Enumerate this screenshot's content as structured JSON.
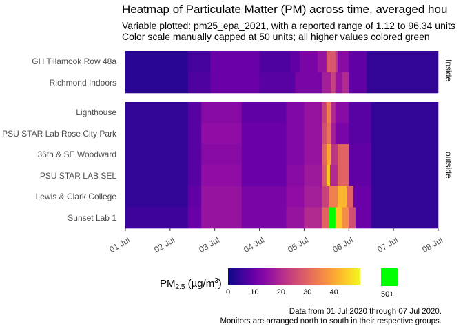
{
  "chart_data": {
    "type": "heatmap",
    "title": "Heatmap of Particulate Matter (PM) across time, averaged hou",
    "subtitle_lines": [
      "Variable plotted: pm25_epa_2021, with a reported range of 1.12 to 96.34 units",
      "Color scale manually capped at 50 units; all higher values colored green"
    ],
    "x_ticks": [
      "01 Jul",
      "02 Jul",
      "03 Jul",
      "04 Jul",
      "05 Jul",
      "06 Jul",
      "07 Jul",
      "08 Jul"
    ],
    "x_range": [
      "2020-07-01",
      "2020-07-08"
    ],
    "color_scale": {
      "min": 0,
      "cap": 50,
      "ticks": [
        "0",
        "10",
        "20",
        "30",
        "40"
      ],
      "over_cap_label": "50+",
      "over_cap_color": "#00ff00"
    },
    "legend_title": "PM2.5 (µg/m3)",
    "legend_title_parts": {
      "main": "PM",
      "sub": "2.5",
      "unit_open": " (µg/m",
      "sup": "3",
      "unit_close": ")"
    },
    "panels": [
      {
        "name": "inside",
        "monitors": [
          {
            "name": "GH Tillamook Row 48a",
            "base": 3,
            "segments": [
              [
                0,
                1.4,
                3
              ],
              [
                1.4,
                1.9,
                6
              ],
              [
                1.9,
                3.0,
                10
              ],
              [
                3.0,
                3.7,
                7
              ],
              [
                3.7,
                3.9,
                9
              ],
              [
                3.9,
                4.3,
                12
              ],
              [
                4.3,
                4.5,
                16
              ],
              [
                4.5,
                4.7,
                28
              ],
              [
                4.7,
                4.75,
                22
              ],
              [
                4.75,
                5.0,
                14
              ],
              [
                5.0,
                5.4,
                9
              ],
              [
                5.4,
                7.0,
                4
              ]
            ]
          },
          {
            "name": "Richmond Indoors",
            "base": 3,
            "segments": [
              [
                0,
                1.4,
                3
              ],
              [
                1.4,
                1.9,
                7
              ],
              [
                1.9,
                3.0,
                10
              ],
              [
                3.0,
                3.8,
                8
              ],
              [
                3.8,
                4.4,
                12
              ],
              [
                4.4,
                4.6,
                18
              ],
              [
                4.6,
                4.7,
                24
              ],
              [
                4.7,
                4.85,
                16
              ],
              [
                4.85,
                5.0,
                20
              ],
              [
                5.0,
                5.4,
                9
              ],
              [
                5.4,
                7.0,
                4
              ]
            ]
          }
        ]
      },
      {
        "name": "outside",
        "monitors": [
          {
            "name": "Lighthouse",
            "base": 3,
            "segments": [
              [
                0,
                1.4,
                4
              ],
              [
                1.4,
                1.7,
                8
              ],
              [
                1.7,
                2.6,
                14
              ],
              [
                2.6,
                3.6,
                9
              ],
              [
                3.6,
                4.0,
                13
              ],
              [
                4.0,
                4.4,
                16
              ],
              [
                4.4,
                4.5,
                24
              ],
              [
                4.5,
                4.6,
                34
              ],
              [
                4.6,
                4.7,
                20
              ],
              [
                4.7,
                5.0,
                14
              ],
              [
                5.0,
                5.5,
                8
              ],
              [
                5.5,
                7.0,
                4
              ]
            ]
          },
          {
            "name": "PSU STAR Lab Rose City Park",
            "base": 3,
            "segments": [
              [
                0,
                1.4,
                4
              ],
              [
                1.4,
                1.7,
                8
              ],
              [
                1.7,
                2.6,
                15
              ],
              [
                2.6,
                3.6,
                10
              ],
              [
                3.6,
                4.0,
                13
              ],
              [
                4.0,
                4.4,
                16
              ],
              [
                4.4,
                4.5,
                26
              ],
              [
                4.5,
                4.6,
                32
              ],
              [
                4.6,
                4.7,
                18
              ],
              [
                4.7,
                5.0,
                12
              ],
              [
                5.0,
                5.5,
                8
              ],
              [
                5.5,
                7.0,
                4
              ]
            ]
          },
          {
            "name": "36th & SE Woodward",
            "base": 3,
            "segments": [
              [
                0,
                1.4,
                4
              ],
              [
                1.4,
                1.7,
                8
              ],
              [
                1.7,
                2.6,
                14
              ],
              [
                2.6,
                3.6,
                10
              ],
              [
                3.6,
                4.0,
                13
              ],
              [
                4.0,
                4.4,
                16
              ],
              [
                4.4,
                4.5,
                30
              ],
              [
                4.5,
                4.6,
                40
              ],
              [
                4.6,
                4.75,
                22
              ],
              [
                4.75,
                5.0,
                30
              ],
              [
                5.0,
                5.5,
                9
              ],
              [
                5.5,
                7.0,
                4
              ]
            ]
          },
          {
            "name": "PSU STAR LAB SEL",
            "base": 3,
            "segments": [
              [
                0,
                1.4,
                4
              ],
              [
                1.4,
                1.7,
                8
              ],
              [
                1.7,
                2.6,
                15
              ],
              [
                2.6,
                3.6,
                10
              ],
              [
                3.6,
                4.0,
                14
              ],
              [
                4.0,
                4.4,
                17
              ],
              [
                4.4,
                4.5,
                28
              ],
              [
                4.5,
                4.58,
                44
              ],
              [
                4.58,
                4.75,
                20
              ],
              [
                4.75,
                5.0,
                30
              ],
              [
                5.0,
                5.5,
                9
              ],
              [
                5.5,
                7.0,
                4
              ]
            ]
          },
          {
            "name": "Lewis & Clark College",
            "base": 3,
            "segments": [
              [
                0,
                1.4,
                4
              ],
              [
                1.4,
                1.7,
                9
              ],
              [
                1.7,
                2.6,
                16
              ],
              [
                2.6,
                3.6,
                12
              ],
              [
                3.6,
                4.0,
                15
              ],
              [
                4.0,
                4.4,
                18
              ],
              [
                4.4,
                4.55,
                24
              ],
              [
                4.55,
                4.75,
                34
              ],
              [
                4.75,
                4.95,
                42
              ],
              [
                4.95,
                5.1,
                30
              ],
              [
                5.1,
                5.5,
                10
              ],
              [
                5.5,
                7.0,
                4
              ]
            ]
          },
          {
            "name": "Sunset Lab 1",
            "base": 3,
            "segments": [
              [
                0,
                1.4,
                5
              ],
              [
                1.4,
                1.7,
                10
              ],
              [
                1.7,
                2.6,
                16
              ],
              [
                2.6,
                3.6,
                12
              ],
              [
                3.6,
                4.0,
                16
              ],
              [
                4.0,
                4.4,
                20
              ],
              [
                4.4,
                4.55,
                30
              ],
              [
                4.55,
                4.7,
                96
              ],
              [
                4.7,
                4.85,
                44
              ],
              [
                4.85,
                5.0,
                36
              ],
              [
                5.0,
                5.15,
                26
              ],
              [
                5.15,
                5.5,
                10
              ],
              [
                5.5,
                7.0,
                4
              ]
            ]
          }
        ]
      }
    ]
  },
  "caption": [
    "Data from 01 Jul 2020 through 07 Jul 2020.",
    "Monitors are arranged north to south in their respective groups."
  ]
}
